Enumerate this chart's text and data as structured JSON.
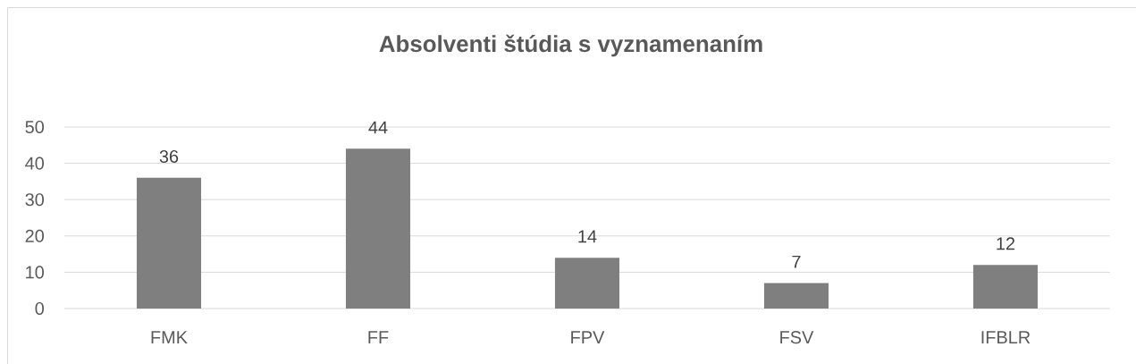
{
  "chart_data": {
    "type": "bar",
    "title": "Absolventi štúdia s vyznamenaním",
    "categories": [
      "FMK",
      "FF",
      "FPV",
      "FSV",
      "IFBLR"
    ],
    "values": [
      36,
      44,
      14,
      7,
      12
    ],
    "color": "#7f7f7f",
    "ylim": [
      0,
      50
    ],
    "yticks": [
      0,
      10,
      20,
      30,
      40,
      50
    ],
    "grid": "y",
    "data_labels": true
  }
}
